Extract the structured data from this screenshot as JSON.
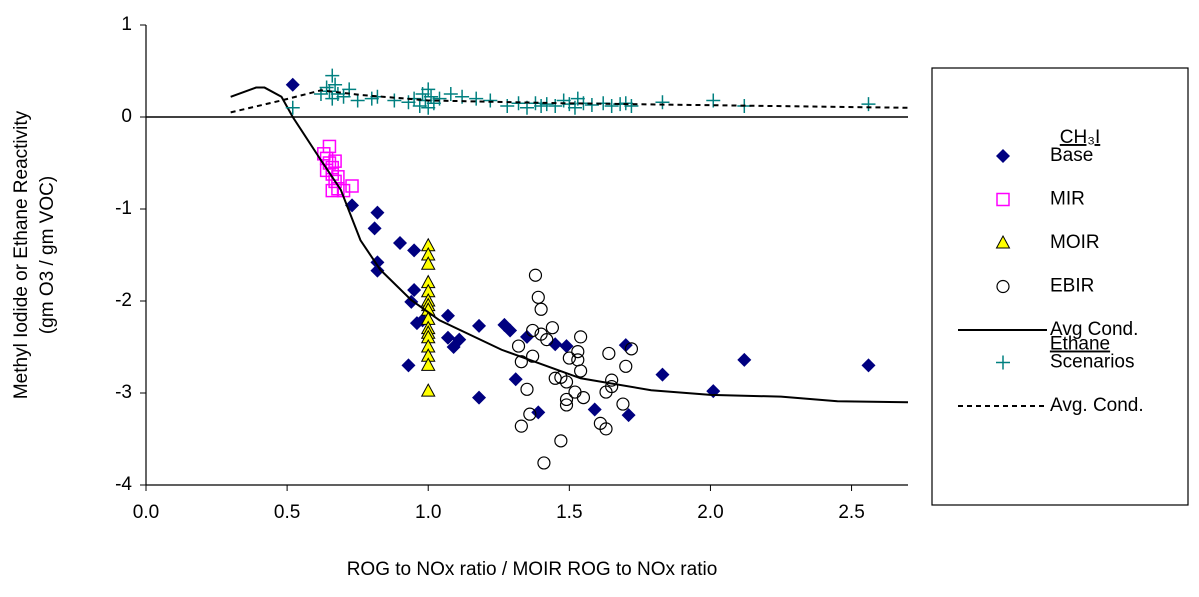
{
  "chart_data": {
    "type": "scatter",
    "ylabel": [
      "Methyl Iodide or Ethane Reactivity",
      "(gm O3 / gm VOC)"
    ],
    "xlabel": "ROG to NOx ratio / MOIR ROG to NOx ratio",
    "xlim": [
      0,
      2.7
    ],
    "ylim": [
      -4,
      1
    ],
    "xticks": [
      {
        "value": 0,
        "label": "0.0"
      },
      0.5,
      {
        "value": 1,
        "label": "1.0"
      },
      1.5,
      {
        "value": 2,
        "label": "2.0"
      },
      2.5
    ],
    "yticks": [
      -4,
      -3,
      -2,
      -1,
      0,
      1
    ],
    "zero_line": true,
    "legend": "right",
    "legend_headers": [
      "CH₃I",
      "Ethane"
    ],
    "series": [
      {
        "name": "Base",
        "group": 0,
        "marker": "diamond",
        "color": "#000080",
        "x": [
          0.52,
          0.73,
          0.81,
          0.82,
          0.82,
          0.82,
          0.9,
          0.95,
          0.94,
          0.95,
          0.96,
          0.93,
          0.98,
          1.07,
          1.07,
          1.09,
          1.11,
          1.18,
          1.18,
          1.27,
          1.29,
          1.31,
          1.35,
          1.39,
          1.45,
          1.49,
          1.59,
          1.7,
          1.71,
          1.83,
          2.01,
          2.12,
          2.56
        ],
        "values": [
          0.35,
          -0.96,
          -1.21,
          -1.04,
          -1.58,
          -1.67,
          -1.37,
          -1.45,
          -2.01,
          -1.88,
          -2.24,
          -2.7,
          -2.21,
          -2.16,
          -2.4,
          -2.5,
          -2.42,
          -2.27,
          -3.05,
          -2.26,
          -2.32,
          -2.85,
          -2.39,
          -3.21,
          -2.47,
          -2.49,
          -3.18,
          -2.48,
          -3.24,
          -2.8,
          -2.98,
          -2.64,
          -2.7
        ]
      },
      {
        "name": "MIR",
        "group": 0,
        "marker": "square",
        "color": "#ff00ff",
        "x": [
          0.63,
          0.64,
          0.65,
          0.65,
          0.66,
          0.66,
          0.67,
          0.68,
          0.64,
          0.66,
          0.7,
          0.73,
          0.67,
          0.68
        ],
        "values": [
          -0.4,
          -0.45,
          -0.32,
          -0.5,
          -0.55,
          -0.62,
          -0.7,
          -0.78,
          -0.58,
          -0.8,
          -0.8,
          -0.75,
          -0.48,
          -0.65
        ]
      },
      {
        "name": "MOIR",
        "group": 0,
        "marker": "triangle",
        "color": "#ffff00",
        "x": [
          1,
          1,
          1,
          1,
          1,
          1,
          1,
          1,
          1,
          1,
          1,
          1,
          1,
          1,
          1,
          1
        ],
        "values": [
          -1.4,
          -1.5,
          -1.6,
          -1.8,
          -1.9,
          -2,
          -2.05,
          -2.1,
          -2.2,
          -2.3,
          -2.35,
          -2.4,
          -2.5,
          -2.6,
          -2.7,
          -2.98
        ]
      },
      {
        "name": "EBIR",
        "group": 0,
        "marker": "circle",
        "color": "#000000",
        "x": [
          1.38,
          1.39,
          1.4,
          1.32,
          1.37,
          1.4,
          1.42,
          1.44,
          1.37,
          1.33,
          1.35,
          1.36,
          1.33,
          1.47,
          1.45,
          1.49,
          1.49,
          1.49,
          1.52,
          1.53,
          1.53,
          1.54,
          1.54,
          1.55,
          1.64,
          1.65,
          1.63,
          1.61,
          1.63,
          1.65,
          1.69,
          1.7,
          1.72,
          1.47,
          1.41,
          1.5
        ],
        "values": [
          -1.72,
          -1.96,
          -2.09,
          -2.49,
          -2.32,
          -2.36,
          -2.42,
          -2.29,
          -2.6,
          -2.66,
          -2.96,
          -3.23,
          -3.36,
          -2.83,
          -2.84,
          -2.88,
          -3.07,
          -3.13,
          -2.99,
          -2.64,
          -2.55,
          -2.39,
          -2.76,
          -3.05,
          -2.57,
          -2.86,
          -2.99,
          -3.33,
          -3.39,
          -2.93,
          -3.12,
          -2.71,
          -2.52,
          -3.52,
          -3.76,
          -2.62
        ]
      },
      {
        "name": "Avg Cond.",
        "group": 0,
        "marker": "line",
        "dash": false,
        "color": "#000000",
        "x": [
          0.3,
          0.39,
          0.42,
          0.48,
          0.52,
          0.62,
          0.69,
          0.76,
          0.83,
          0.94,
          1.04,
          1.26,
          1.54,
          1.79,
          2,
          2.25,
          2.45,
          2.7
        ],
        "values": [
          0.22,
          0.32,
          0.32,
          0.22,
          0,
          -0.47,
          -0.79,
          -1.34,
          -1.66,
          -1.99,
          -2.21,
          -2.53,
          -2.84,
          -2.97,
          -3.02,
          -3.04,
          -3.09,
          -3.1
        ]
      },
      {
        "name": "Scenarios",
        "group": 1,
        "marker": "plus",
        "color": "#008080",
        "x": [
          0.52,
          0.62,
          0.64,
          0.65,
          0.66,
          0.66,
          0.67,
          0.68,
          0.7,
          0.72,
          0.75,
          0.8,
          0.82,
          0.88,
          0.93,
          0.95,
          0.97,
          0.98,
          0.99,
          1,
          1,
          1.01,
          1.02,
          1.04,
          1.08,
          1.12,
          1.17,
          1.22,
          1.28,
          1.32,
          1.35,
          1.38,
          1.4,
          1.42,
          1.45,
          1.48,
          1.5,
          1.52,
          1.53,
          1.55,
          1.58,
          1.62,
          1.65,
          1.68,
          1.7,
          1.72,
          1.83,
          2.01,
          2.12,
          2.56
        ],
        "values": [
          0.1,
          0.25,
          0.32,
          0.28,
          0.45,
          0.2,
          0.35,
          0.25,
          0.22,
          0.3,
          0.18,
          0.2,
          0.22,
          0.18,
          0.16,
          0.2,
          0.12,
          0.25,
          0.18,
          0.3,
          0.1,
          0.22,
          0.15,
          0.2,
          0.25,
          0.22,
          0.2,
          0.18,
          0.12,
          0.15,
          0.1,
          0.15,
          0.12,
          0.14,
          0.12,
          0.18,
          0.14,
          0.1,
          0.2,
          0.15,
          0.13,
          0.15,
          0.12,
          0.14,
          0.15,
          0.12,
          0.16,
          0.18,
          0.12,
          0.14
        ]
      },
      {
        "name": "Avg. Cond.",
        "group": 1,
        "marker": "line",
        "dash": true,
        "color": "#000000",
        "x": [
          0.3,
          0.48,
          0.62,
          0.76,
          1,
          1.47,
          1.96,
          2.7
        ],
        "values": [
          0.05,
          0.18,
          0.29,
          0.24,
          0.18,
          0.15,
          0.13,
          0.1
        ]
      }
    ]
  }
}
